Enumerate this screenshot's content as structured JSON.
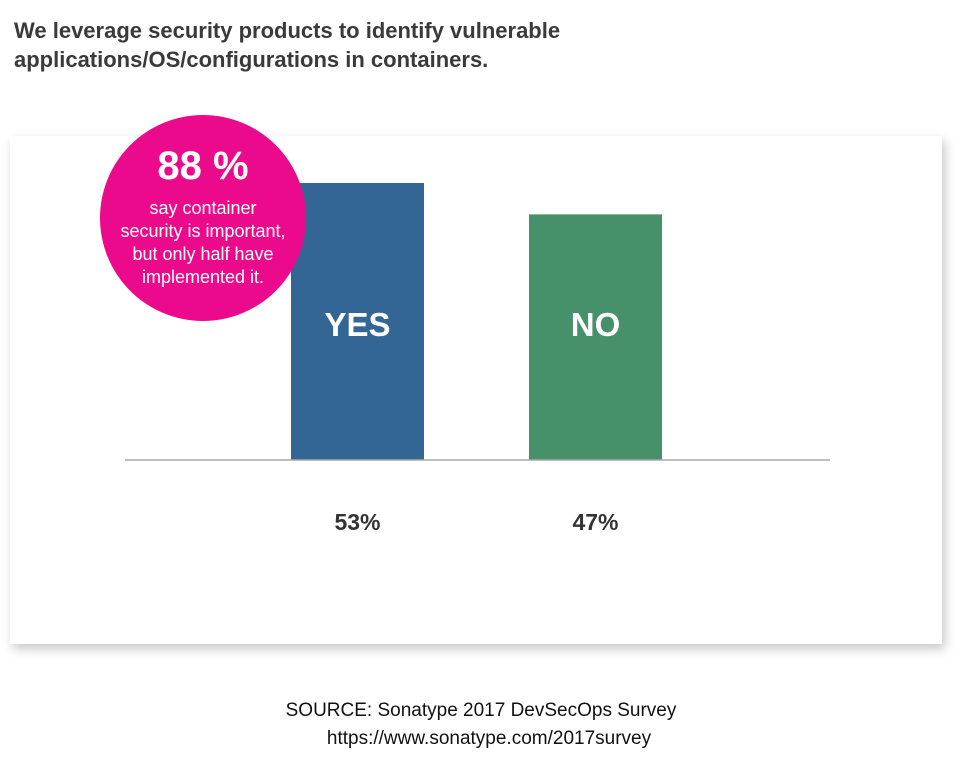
{
  "title_lines": [
    "We leverage security products to identify vulnerable",
    "applications/OS/configurations in containers."
  ],
  "callout": {
    "value": "88 %",
    "lines": [
      "say container",
      "security is important,",
      "but only half have",
      "implemented it."
    ],
    "color": "#ec0a8c"
  },
  "source": {
    "line1": "SOURCE: Sonatype 2017 DevSecOps Survey",
    "line2": "https://www.sonatype.com/2017survey"
  },
  "chart_data": {
    "type": "bar",
    "categories": [
      "YES",
      "NO"
    ],
    "values": [
      53,
      47
    ],
    "value_labels": [
      "53%",
      "47%"
    ],
    "colors": [
      "#336694",
      "#46906a"
    ],
    "ylim": [
      0,
      53
    ],
    "grid": false,
    "legend": "none"
  }
}
